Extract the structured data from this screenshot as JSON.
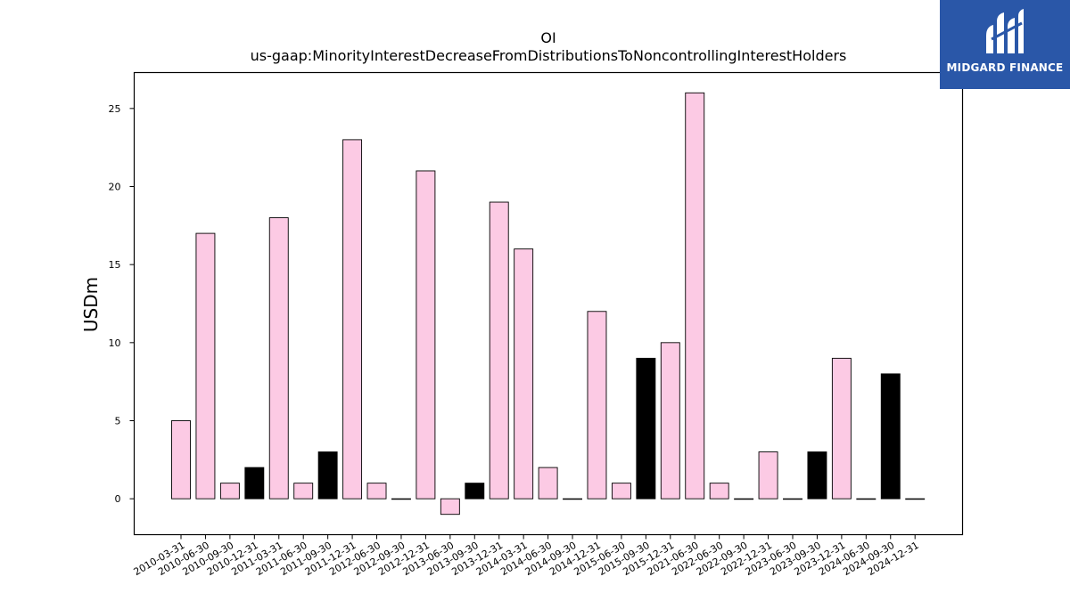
{
  "logo": {
    "text": "MIDGARD FINANCE",
    "bg_color": "#2a57a8"
  },
  "chart_data": {
    "type": "bar",
    "title": "OI",
    "subtitle": "us-gaap:MinorityInterestDecreaseFromDistributionsToNoncontrollingInterestHolders",
    "xlabel": "",
    "ylabel": "USDm",
    "ylim": [
      -2.3,
      27.3
    ],
    "yticks": [
      0,
      5,
      10,
      15,
      20,
      25
    ],
    "grid": false,
    "categories": [
      "2010-03-31",
      "2010-06-30",
      "2010-09-30",
      "2010-12-31",
      "2011-03-31",
      "2011-06-30",
      "2011-09-30",
      "2011-12-31",
      "2012-06-30",
      "2012-09-30",
      "2012-12-31",
      "2013-06-30",
      "2013-09-30",
      "2013-12-31",
      "2014-03-31",
      "2014-06-30",
      "2014-09-30",
      "2014-12-31",
      "2015-06-30",
      "2015-09-30",
      "2015-12-31",
      "2021-06-30",
      "2022-06-30",
      "2022-09-30",
      "2022-12-31",
      "2023-06-30",
      "2023-09-30",
      "2023-12-31",
      "2024-06-30",
      "2024-09-30",
      "2024-12-31"
    ],
    "values": [
      5,
      17,
      1,
      2,
      18,
      1,
      3,
      23,
      1,
      0,
      21,
      -1,
      1,
      19,
      16,
      2,
      0,
      12,
      1,
      9,
      10,
      26,
      1,
      0,
      3,
      0,
      3,
      9,
      0,
      8,
      0
    ],
    "bar_colors": [
      "#fccae4",
      "#fccae4",
      "#fccae4",
      "#000000",
      "#fccae4",
      "#fccae4",
      "#000000",
      "#fccae4",
      "#fccae4",
      "#fccae4",
      "#fccae4",
      "#fccae4",
      "#000000",
      "#fccae4",
      "#fccae4",
      "#fccae4",
      "#fccae4",
      "#fccae4",
      "#fccae4",
      "#000000",
      "#fccae4",
      "#fccae4",
      "#fccae4",
      "#fccae4",
      "#fccae4",
      "#fccae4",
      "#000000",
      "#fccae4",
      "#fccae4",
      "#000000",
      "#fccae4"
    ],
    "colors": {
      "quarter": "#fccae4",
      "year_end": "#000000",
      "edge": "#000000"
    }
  }
}
